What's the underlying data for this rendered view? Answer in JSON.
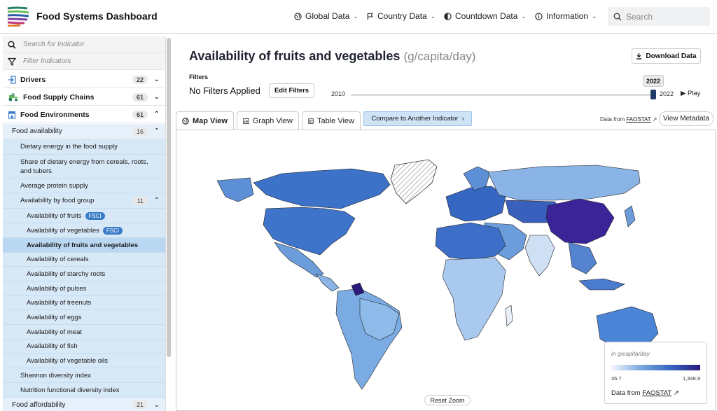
{
  "header": {
    "brand": "Food Systems Dashboard",
    "nav": [
      {
        "label": "Global Data",
        "icon": "globe-icon"
      },
      {
        "label": "Country Data",
        "icon": "flag-icon"
      },
      {
        "label": "Countdown Data",
        "icon": "countdown-icon"
      },
      {
        "label": "Information",
        "icon": "info-icon"
      }
    ],
    "search_placeholder": "Search"
  },
  "sidebar": {
    "search_placeholder": "Search for Indicator",
    "filter_placeholder": "Filter Indicators",
    "categories": [
      {
        "label": "Drivers",
        "count": "22",
        "icon": "arrow-into-box-icon"
      },
      {
        "label": "Food Supply Chains",
        "count": "61",
        "icon": "tractor-icon"
      },
      {
        "label": "Food Environments",
        "count": "61",
        "icon": "storefront-icon"
      }
    ],
    "food_availability": {
      "label": "Food availability",
      "count": "16"
    },
    "items_top": [
      "Dietary energy in the food supply",
      "Share of dietary energy from cereals, roots, and tubers",
      "Average protein supply"
    ],
    "by_food_group": {
      "label": "Availability by food group",
      "count": "11"
    },
    "group_items": [
      {
        "label": "Availability of fruits",
        "tag": "FSCI"
      },
      {
        "label": "Availability of vegetables",
        "tag": "FSCI"
      },
      {
        "label": "Availability of fruits and vegetables",
        "tag": ""
      },
      {
        "label": "Availability of cereals",
        "tag": ""
      },
      {
        "label": "Availability of starchy roots",
        "tag": ""
      },
      {
        "label": "Availability of pulses",
        "tag": ""
      },
      {
        "label": "Availability of treenuts",
        "tag": ""
      },
      {
        "label": "Availability of eggs",
        "tag": ""
      },
      {
        "label": "Availability of meat",
        "tag": ""
      },
      {
        "label": "Availability of fish",
        "tag": ""
      },
      {
        "label": "Availability of vegetable oils",
        "tag": ""
      }
    ],
    "items_bottom": [
      "Shannon diversity index",
      "Nutrition functional diversity index"
    ],
    "food_affordability": {
      "label": "Food affordability",
      "count": "21"
    }
  },
  "main": {
    "title": "Availability of fruits and vegetables",
    "unit": "(g/capita/day)",
    "download_label": "Download Data",
    "filters_label": "Filters",
    "no_filters": "No Filters Applied",
    "edit_filters_label": "Edit Filters",
    "year_start": "2010",
    "year_end": "2022",
    "year_selected": "2022",
    "play_label": "Play",
    "tabs": [
      {
        "label": "Map View",
        "icon": "globe-icon"
      },
      {
        "label": "Graph View",
        "icon": "chart-icon"
      },
      {
        "label": "Table View",
        "icon": "table-icon"
      }
    ],
    "compare_label": "Compare to Another Indicator",
    "data_from_prefix": "Data from",
    "data_source": "FAOSTAT",
    "metadata_label": "View Metadata",
    "reset_zoom_label": "Reset Zoom"
  },
  "legend": {
    "unit": "in g/capita/day",
    "min": "35.7",
    "max": "1,346.9",
    "source_prefix": "Data from",
    "source": "FAOSTAT"
  },
  "colors": {
    "accent": "#3a7bc8",
    "sidebar_item": "#d7e8f7",
    "sidebar_active": "#bad7f1",
    "map_low": "#f4f7fc",
    "map_high": "#2a1a7c"
  }
}
